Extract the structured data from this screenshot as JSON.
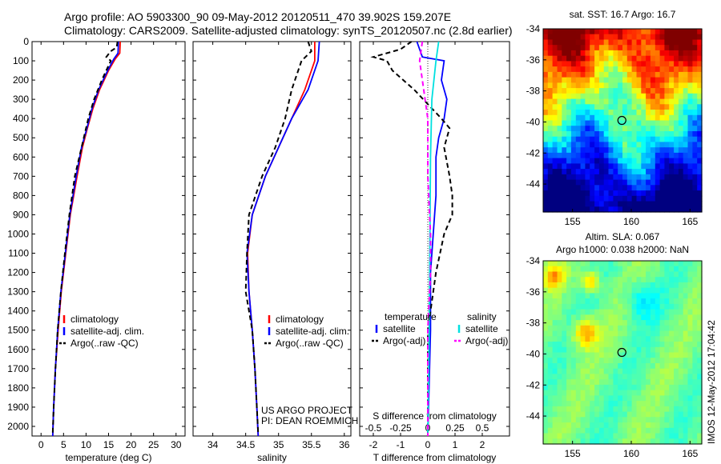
{
  "header": {
    "line1": "Argo profile: AO 5903300_90 09-May-2012 20120511_470 39.902S 159.207E",
    "line2": "Climatology: CARS2009. Satellite-adjusted climatology: synTS_20120507.nc (2.8d earlier)"
  },
  "colors": {
    "climatology": "#ff0000",
    "satellite": "#0000ff",
    "argo": "#000000",
    "sat_salinity": "#00e0e0",
    "argo_salinity": "#ff00ff"
  },
  "chart_data": [
    {
      "type": "line",
      "id": "temperature",
      "xlabel": "temperature (deg C)",
      "xlim": [
        -2,
        32
      ],
      "xticks": [
        0,
        5,
        10,
        15,
        20,
        25,
        30
      ],
      "ylim": [
        0,
        2050
      ],
      "yticks": [
        0,
        100,
        200,
        300,
        400,
        500,
        600,
        700,
        800,
        900,
        1000,
        1100,
        1200,
        1300,
        1400,
        1500,
        1600,
        1700,
        1800,
        1900,
        2000
      ],
      "legend": {
        "position": "middle-left",
        "entries": [
          "climatology",
          "satellite-adj. clim.",
          "Argo(..raw -QC)"
        ]
      },
      "series": [
        {
          "name": "climatology",
          "color": "#ff0000",
          "points": [
            [
              17.6,
              0
            ],
            [
              17.5,
              60
            ],
            [
              16.5,
              90
            ],
            [
              15,
              150
            ],
            [
              13,
              250
            ],
            [
              11.5,
              350
            ],
            [
              10.3,
              450
            ],
            [
              9.2,
              550
            ],
            [
              8,
              700
            ],
            [
              6.5,
              900
            ],
            [
              5.5,
              1100
            ],
            [
              4.5,
              1300
            ],
            [
              3.8,
              1500
            ],
            [
              3.2,
              1700
            ],
            [
              2.8,
              1900
            ],
            [
              2.6,
              2050
            ]
          ]
        },
        {
          "name": "satellite-adj. clim.",
          "color": "#0000ff",
          "points": [
            [
              17.2,
              0
            ],
            [
              17.1,
              60
            ],
            [
              16.2,
              90
            ],
            [
              14.8,
              150
            ],
            [
              12.8,
              250
            ],
            [
              11.3,
              350
            ],
            [
              10.2,
              450
            ],
            [
              9,
              550
            ],
            [
              7.8,
              700
            ],
            [
              6.4,
              900
            ],
            [
              5.4,
              1100
            ],
            [
              4.4,
              1300
            ],
            [
              3.7,
              1500
            ],
            [
              3.2,
              1700
            ],
            [
              2.8,
              1900
            ],
            [
              2.6,
              2050
            ]
          ]
        },
        {
          "name": "Argo(..raw -QC)",
          "color": "#000000",
          "dashed": true,
          "points": [
            [
              17,
              0
            ],
            [
              16.8,
              30
            ],
            [
              15.5,
              50
            ],
            [
              14.5,
              80
            ],
            [
              15.5,
              100
            ],
            [
              13.5,
              200
            ],
            [
              11.8,
              300
            ],
            [
              10.5,
              400
            ],
            [
              9,
              550
            ],
            [
              7.5,
              700
            ],
            [
              6.3,
              900
            ],
            [
              5.3,
              1100
            ],
            [
              4.4,
              1300
            ],
            [
              3.7,
              1500
            ],
            [
              3.2,
              1700
            ],
            [
              2.8,
              1900
            ],
            [
              2.6,
              2040
            ]
          ]
        }
      ]
    },
    {
      "type": "line",
      "id": "salinity",
      "xlabel": "salinity",
      "xlim": [
        33.7,
        36.1
      ],
      "xticks": [
        34,
        34.5,
        35,
        35.5,
        36
      ],
      "xticklabels": [
        "34",
        "34.5",
        "35",
        "35.5",
        "36"
      ],
      "ylim": [
        0,
        2050
      ],
      "legend": {
        "position": "bottom-right",
        "entries": [
          "climatology",
          "satellite-adj. clim.",
          "Argo(..raw -QC)"
        ]
      },
      "annotations": [
        "US ARGO PROJECT",
        "PI: DEAN ROEMMICH"
      ],
      "series": [
        {
          "name": "climatology",
          "color": "#ff0000",
          "points": [
            [
              35.55,
              0
            ],
            [
              35.55,
              100
            ],
            [
              35.4,
              250
            ],
            [
              35.2,
              400
            ],
            [
              35,
              550
            ],
            [
              34.8,
              700
            ],
            [
              34.6,
              900
            ],
            [
              34.53,
              1100
            ],
            [
              34.55,
              1300
            ],
            [
              34.6,
              1500
            ],
            [
              34.64,
              1700
            ],
            [
              34.67,
              1900
            ],
            [
              34.69,
              2050
            ]
          ]
        },
        {
          "name": "satellite-adj. clim.",
          "color": "#0000ff",
          "points": [
            [
              35.62,
              0
            ],
            [
              35.6,
              100
            ],
            [
              35.45,
              250
            ],
            [
              35.2,
              400
            ],
            [
              35,
              550
            ],
            [
              34.8,
              700
            ],
            [
              34.6,
              900
            ],
            [
              34.52,
              1100
            ],
            [
              34.55,
              1300
            ],
            [
              34.6,
              1500
            ],
            [
              34.64,
              1700
            ],
            [
              34.67,
              1900
            ],
            [
              34.69,
              2050
            ]
          ]
        },
        {
          "name": "Argo(..raw -QC)",
          "color": "#000000",
          "dashed": true,
          "points": [
            [
              35.45,
              0
            ],
            [
              35.5,
              50
            ],
            [
              35.35,
              100
            ],
            [
              35.2,
              250
            ],
            [
              35.1,
              400
            ],
            [
              34.95,
              550
            ],
            [
              34.75,
              700
            ],
            [
              34.55,
              900
            ],
            [
              34.52,
              1100
            ],
            [
              34.5,
              1300
            ],
            [
              34.6,
              1500
            ],
            [
              34.64,
              1700
            ],
            [
              34.67,
              1900
            ],
            [
              34.69,
              2040
            ]
          ]
        }
      ]
    },
    {
      "type": "line",
      "id": "differences",
      "xlabel": "T difference from climatology",
      "xlim": [
        -2.5,
        3
      ],
      "xticks": [
        -2,
        -1,
        0,
        1,
        2
      ],
      "secondary_axis": {
        "label": "S difference from climatology",
        "ticks": [
          -0.5,
          -0.25,
          0,
          0.25,
          0.5
        ],
        "ticklabels": [
          "-0.5",
          "-0.25",
          "0",
          "0.25",
          "0.5"
        ]
      },
      "ylim": [
        0,
        2050
      ],
      "legend": {
        "position": "bottom",
        "groups": [
          {
            "title": "temperature",
            "entries": [
              "satellite",
              "Argo(-adj)"
            ]
          },
          {
            "title": "salinity",
            "entries": [
              "satellite",
              "Argo(-adj)"
            ]
          }
        ]
      },
      "series": [
        {
          "name": "temperature satellite",
          "color": "#0000ff",
          "points": [
            [
              -0.4,
              0
            ],
            [
              -0.2,
              80
            ],
            [
              0.6,
              100
            ],
            [
              0.5,
              200
            ],
            [
              0.7,
              300
            ],
            [
              0.6,
              400
            ],
            [
              0.4,
              500
            ],
            [
              0.3,
              600
            ],
            [
              0.3,
              800
            ],
            [
              0.2,
              1000
            ],
            [
              0.1,
              1200
            ],
            [
              0.1,
              1500
            ],
            [
              0,
              2050
            ]
          ]
        },
        {
          "name": "temperature Argo(-adj)",
          "color": "#000000",
          "dashed": true,
          "points": [
            [
              -0.6,
              0
            ],
            [
              -1,
              40
            ],
            [
              -2,
              80
            ],
            [
              -1.5,
              100
            ],
            [
              -1.3,
              150
            ],
            [
              -0.5,
              250
            ],
            [
              0.5,
              400
            ],
            [
              0.8,
              450
            ],
            [
              0.6,
              550
            ],
            [
              0.8,
              700
            ],
            [
              0.9,
              800
            ],
            [
              0.9,
              900
            ],
            [
              0.6,
              1000
            ],
            [
              0.3,
              1200
            ],
            [
              0,
              1500
            ],
            [
              0,
              2050
            ]
          ]
        },
        {
          "name": "salinity satellite",
          "color": "#00e0e0",
          "points": [
            [
              0.4,
              0
            ],
            [
              0.3,
              100
            ],
            [
              0.15,
              300
            ],
            [
              0.1,
              600
            ],
            [
              0.08,
              1000
            ],
            [
              0.05,
              1500
            ],
            [
              0,
              2050
            ]
          ]
        },
        {
          "name": "salinity Argo(-adj)",
          "color": "#ff00ff",
          "dashed": true,
          "points": [
            [
              -0.2,
              0
            ],
            [
              -0.3,
              100
            ],
            [
              -0.2,
              200
            ],
            [
              -0.1,
              300
            ],
            [
              0,
              400
            ],
            [
              0,
              700
            ],
            [
              0.1,
              1000
            ],
            [
              0.1,
              1200
            ],
            [
              0,
              1500
            ],
            [
              0,
              2050
            ]
          ]
        }
      ]
    },
    {
      "type": "heatmap",
      "id": "sst_map",
      "title": "sat. SST: 16.7  Argo: 16.7",
      "xlim": [
        152.5,
        166
      ],
      "ylim": [
        -45.8,
        -34
      ],
      "xticks": [
        155,
        160,
        165
      ],
      "yticks": [
        -34,
        -36,
        -38,
        -40,
        -42,
        -44
      ],
      "marker": {
        "lon": 159.2,
        "lat": -39.9
      }
    },
    {
      "type": "heatmap",
      "id": "sla_map",
      "title_line1": "Altim. SLA: 0.067",
      "title_line2": "Argo h1000: 0.038 h2000: NaN",
      "xlim": [
        152.5,
        166
      ],
      "ylim": [
        -45.8,
        -34
      ],
      "xticks": [
        155,
        160,
        165
      ],
      "yticks": [
        -34,
        -36,
        -38,
        -40,
        -42,
        -44
      ],
      "marker": {
        "lon": 159.2,
        "lat": -39.9
      }
    }
  ],
  "footer": {
    "stamp": "IMOS 12-May-2012 17:04:42"
  }
}
